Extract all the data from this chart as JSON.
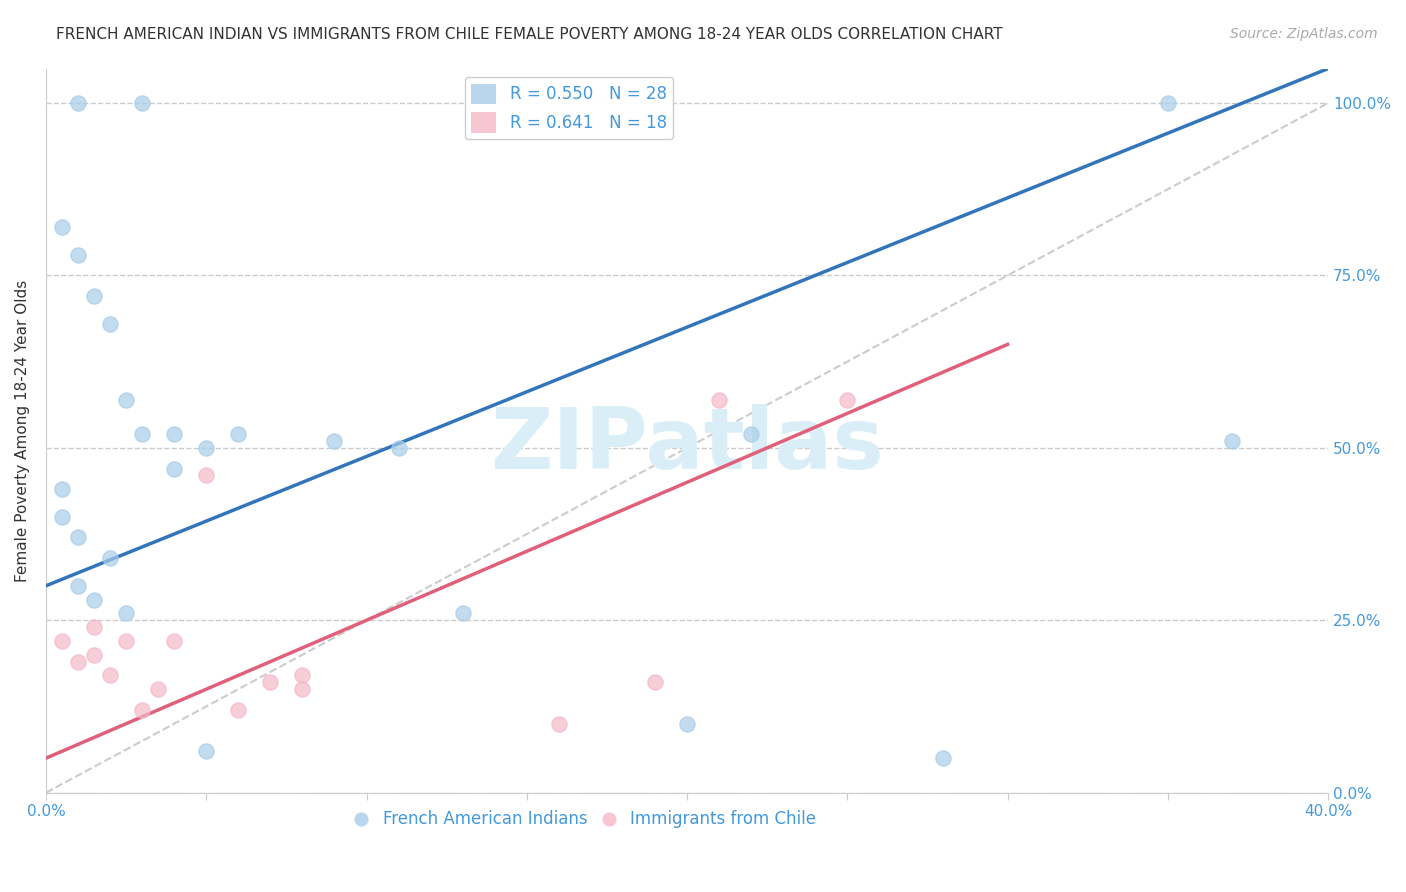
{
  "title": "FRENCH AMERICAN INDIAN VS IMMIGRANTS FROM CHILE FEMALE POVERTY AMONG 18-24 YEAR OLDS CORRELATION CHART",
  "source": "Source: ZipAtlas.com",
  "ylabel": "Female Poverty Among 18-24 Year Olds",
  "xlim": [
    0.0,
    0.4
  ],
  "ylim": [
    0.0,
    1.05
  ],
  "ytick_labels": [
    "0.0%",
    "25.0%",
    "50.0%",
    "75.0%",
    "100.0%"
  ],
  "ytick_vals": [
    0.0,
    0.25,
    0.5,
    0.75,
    1.0
  ],
  "xtick_vals": [
    0.0,
    0.05,
    0.1,
    0.15,
    0.2,
    0.25,
    0.3,
    0.35,
    0.4
  ],
  "legend_blue_label": "French American Indians",
  "legend_pink_label": "Immigrants from Chile",
  "R_blue": 0.55,
  "N_blue": 28,
  "R_pink": 0.641,
  "N_pink": 18,
  "blue_color": "#a8cce8",
  "pink_color": "#f4b8c8",
  "blue_line_color": "#3375bb",
  "pink_line_color": "#e0607a",
  "ref_line_color": "#cccccc",
  "scatter_alpha": 0.7,
  "scatter_size": 120,
  "blue_scatter_x": [
    0.01,
    0.03,
    0.005,
    0.01,
    0.015,
    0.02,
    0.025,
    0.03,
    0.04,
    0.04,
    0.05,
    0.06,
    0.005,
    0.005,
    0.01,
    0.02,
    0.01,
    0.015,
    0.025,
    0.09,
    0.11,
    0.13,
    0.22,
    0.35,
    0.37,
    0.28,
    0.05,
    0.2
  ],
  "blue_scatter_y": [
    1.0,
    1.0,
    0.82,
    0.78,
    0.72,
    0.68,
    0.57,
    0.52,
    0.52,
    0.47,
    0.5,
    0.52,
    0.44,
    0.4,
    0.37,
    0.34,
    0.3,
    0.28,
    0.26,
    0.51,
    0.5,
    0.26,
    0.52,
    1.0,
    0.51,
    0.05,
    0.06,
    0.1
  ],
  "pink_scatter_x": [
    0.005,
    0.01,
    0.015,
    0.015,
    0.02,
    0.025,
    0.03,
    0.035,
    0.04,
    0.05,
    0.06,
    0.07,
    0.08,
    0.08,
    0.16,
    0.19,
    0.21,
    0.25
  ],
  "pink_scatter_y": [
    0.22,
    0.19,
    0.24,
    0.2,
    0.17,
    0.22,
    0.12,
    0.15,
    0.22,
    0.46,
    0.12,
    0.16,
    0.15,
    0.17,
    0.1,
    0.16,
    0.57,
    0.57
  ],
  "blue_line_x": [
    0.0,
    0.4
  ],
  "blue_line_y": [
    0.3,
    1.05
  ],
  "pink_line_x": [
    0.0,
    0.3
  ],
  "pink_line_y": [
    0.05,
    0.65
  ],
  "ref_line_x": [
    0.0,
    0.4
  ],
  "ref_line_y": [
    0.0,
    1.0
  ],
  "background_color": "#ffffff",
  "grid_color": "#cccccc",
  "title_fontsize": 11,
  "axis_label_fontsize": 11,
  "tick_fontsize": 11,
  "legend_fontsize": 12,
  "source_fontsize": 10,
  "watermark": "ZIPatlas",
  "watermark_color": "#daeef8",
  "watermark_fontsize": 62
}
